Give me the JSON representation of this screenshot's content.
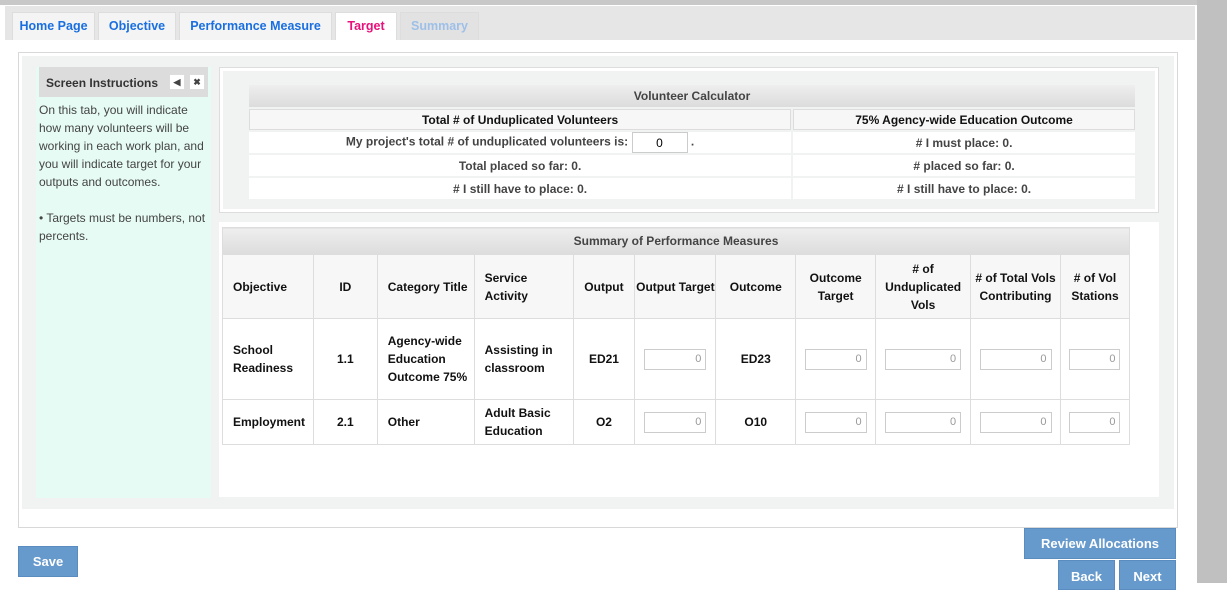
{
  "tabs": [
    {
      "label": "Home Page",
      "state": "normal"
    },
    {
      "label": "Objective",
      "state": "normal"
    },
    {
      "label": "Performance Measure",
      "state": "normal"
    },
    {
      "label": "Target",
      "state": "active"
    },
    {
      "label": "Summary",
      "state": "disabled"
    }
  ],
  "instructions": {
    "title": "Screen Instructions",
    "text": "On this tab, you will indicate how many volunteers will be working in each work plan, and you will indicate target for your outputs and outcomes.",
    "bullet": "• Targets must be numbers, not percents."
  },
  "calculator": {
    "title": "Volunteer Calculator",
    "left_header": "Total # of Unduplicated Volunteers",
    "right_header": "75% Agency-wide Education Outcome",
    "input_label": "My project's total # of unduplicated volunteers is:",
    "input_value": "0",
    "input_suffix": ".",
    "total_placed": "Total placed so far: 0.",
    "still_place": "# I still have to place: 0.",
    "must_place": "# I must place: 0.",
    "placed": "# placed so far: 0.",
    "still_place_right": "# I still have to place: 0."
  },
  "summary": {
    "title": "Summary of Performance Measures",
    "columns": [
      "Objective",
      "ID",
      "Category Title",
      "Service Activity",
      "Output",
      "Output Target",
      "Outcome",
      "Outcome Target",
      "# of Unduplicated Vols",
      "# of Total Vols Contributing",
      "# of Vol Stations"
    ],
    "rows": [
      {
        "objective": "School Readiness",
        "id": "1.1",
        "category": "Agency-wide Education Outcome 75%",
        "service": "Assisting in classroom",
        "output": "ED21",
        "output_target": "0",
        "outcome": "ED23",
        "outcome_target": "0",
        "unduplicated": "0",
        "total_vols": "0",
        "stations": "0"
      },
      {
        "objective": "Employment",
        "id": "2.1",
        "category": "Other",
        "service": "Adult Basic Education",
        "output": "O2",
        "output_target": "0",
        "outcome": "O10",
        "outcome_target": "0",
        "unduplicated": "0",
        "total_vols": "0",
        "stations": "0"
      }
    ]
  },
  "buttons": {
    "save": "Save",
    "review": "Review Allocations",
    "back": "Back",
    "next": "Next"
  },
  "colors": {
    "accent": "#6699cc",
    "active_tab": "#e8107a",
    "tab_link": "#1a6fe0"
  }
}
